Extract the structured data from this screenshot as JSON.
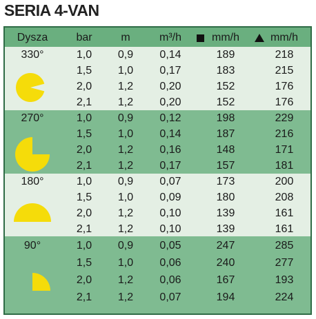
{
  "header": {
    "title": "SERIA 4-VAN"
  },
  "table": {
    "columns": [
      "Dysza",
      "bar",
      "m",
      "m³/h",
      "mm/h",
      "mm/h"
    ],
    "groups": [
      {
        "label": "330°",
        "rows": [
          [
            "1,0",
            "0,9",
            "0,14",
            189,
            218
          ],
          [
            "1,5",
            "1,0",
            "0,17",
            183,
            215
          ],
          [
            "2,0",
            "1,2",
            "0,20",
            152,
            176
          ],
          [
            "2,1",
            "1,2",
            "0,20",
            152,
            176
          ]
        ]
      },
      {
        "label": "270°",
        "rows": [
          [
            "1,0",
            "0,9",
            "0,12",
            198,
            229
          ],
          [
            "1,5",
            "1,0",
            "0,14",
            187,
            216
          ],
          [
            "2,0",
            "1,2",
            "0,16",
            148,
            171
          ],
          [
            "2,1",
            "1,2",
            "0,17",
            157,
            181
          ]
        ]
      },
      {
        "label": "180°",
        "rows": [
          [
            "1,0",
            "0,9",
            "0,07",
            173,
            200
          ],
          [
            "1,5",
            "1,0",
            "0,09",
            180,
            208
          ],
          [
            "2,0",
            "1,2",
            "0,10",
            139,
            161
          ],
          [
            "2,1",
            "1,2",
            "0,10",
            139,
            161
          ]
        ]
      },
      {
        "label": "90°",
        "rows": [
          [
            "1,0",
            "0,9",
            "0,05",
            247,
            285
          ],
          [
            "1,5",
            "1,0",
            "0,06",
            240,
            277
          ],
          [
            "2,0",
            "1,2",
            "0,06",
            167,
            193
          ],
          [
            "2,1",
            "1,2",
            "0,07",
            194,
            224
          ]
        ]
      }
    ]
  }
}
